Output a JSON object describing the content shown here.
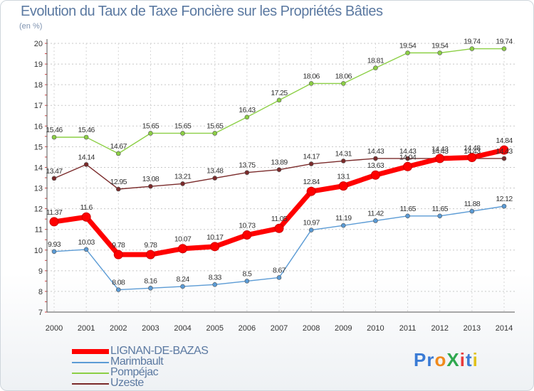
{
  "title": "Evolution du Taux de Taxe Foncière sur les Propriétés Bâties",
  "unit": "(en %)",
  "logo": "ProXiti",
  "chart_data": {
    "type": "line",
    "title": "Evolution du Taux de Taxe Foncière sur les Propriétés Bâties",
    "ylabel": "(en %)",
    "xlabel": "",
    "ylim": [
      7,
      20
    ],
    "yticks": [
      7,
      8,
      9,
      10,
      11,
      12,
      13,
      14,
      15,
      16,
      17,
      18,
      19,
      20
    ],
    "grid": "horizontal",
    "legend": "bottom-left",
    "x": [
      "2000",
      "2001",
      "2002",
      "2003",
      "2004",
      "2005",
      "2006",
      "2007",
      "2008",
      "2009",
      "2010",
      "2011",
      "2012",
      "2013",
      "2014"
    ],
    "series": [
      {
        "name": "LIGNAN-DE-BAZAS",
        "color": "#ff0000",
        "values": [
          11.37,
          11.6,
          9.78,
          9.78,
          10.07,
          10.17,
          10.73,
          11.05,
          12.84,
          13.1,
          13.63,
          14.04,
          14.43,
          14.48,
          14.84
        ]
      },
      {
        "name": "Marimbault",
        "color": "#5b9bd5",
        "values": [
          9.93,
          10.03,
          8.08,
          8.16,
          8.24,
          8.33,
          8.5,
          8.67,
          10.97,
          11.19,
          11.42,
          11.65,
          11.65,
          11.88,
          12.12
        ]
      },
      {
        "name": "Pompéjac",
        "color": "#8ccf45",
        "values": [
          15.46,
          15.46,
          14.67,
          15.65,
          15.65,
          15.65,
          16.43,
          17.25,
          18.06,
          18.06,
          18.81,
          19.54,
          19.54,
          19.74,
          19.74
        ]
      },
      {
        "name": "Uzeste",
        "color": "#7a2a2a",
        "values": [
          13.47,
          14.14,
          12.95,
          13.08,
          13.21,
          13.48,
          13.75,
          13.89,
          14.17,
          14.31,
          14.43,
          14.43,
          14.43,
          14.43,
          14.43
        ]
      }
    ]
  }
}
